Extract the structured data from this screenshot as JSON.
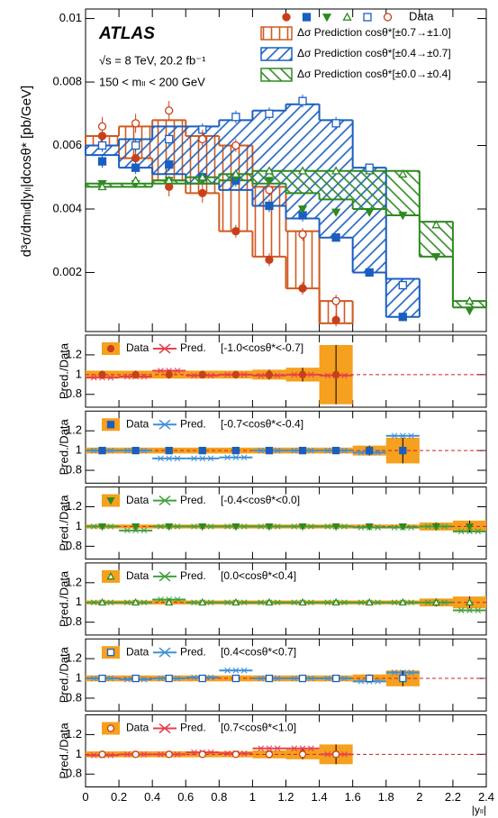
{
  "chart_data": {
    "type": "step",
    "experiment": "ATLAS",
    "energy_label": "√s = 8 TeV, 20.2 fb⁻¹",
    "mass_label": "150 < mₗₗ < 200 GeV",
    "ylabel": "d³σ/dmₗₗd|yₗₗ|dcosθ* [pb/GeV]",
    "xlabel": "|yₗₗ|",
    "xlim": [
      0,
      2.4
    ],
    "xticks": [
      0,
      0.2,
      0.4,
      0.6,
      0.8,
      1,
      1.2,
      1.4,
      1.6,
      1.8,
      2,
      2.2,
      2.4
    ],
    "ylim": [
      0.00014,
      0.0103
    ],
    "yticks": [
      0.002,
      0.004,
      0.006,
      0.008,
      0.01
    ],
    "bins": [
      0,
      0.2,
      0.4,
      0.6,
      0.8,
      1,
      1.2,
      1.4,
      1.6,
      1.8,
      2,
      2.2,
      2.4
    ],
    "x": [
      0.1,
      0.3,
      0.5,
      0.7,
      0.9,
      1.1,
      1.3,
      1.5,
      1.7,
      1.9,
      2.1,
      2.3
    ],
    "data_label": "Data",
    "data_series": [
      {
        "marker": "circle",
        "color": "#c8401a",
        "values": [
          0.0063,
          0.0056,
          0.0047,
          0.0045,
          0.0033,
          0.0024,
          0.0015,
          0.0005
        ],
        "errors": [
          0.0003,
          0.0003,
          0.0003,
          0.0003,
          0.0002,
          0.0002,
          0.0002,
          0.0002
        ]
      },
      {
        "marker": "square",
        "color": "#1a5fc0",
        "values": [
          0.0055,
          0.0053,
          0.0054,
          0.005,
          0.0049,
          0.0041,
          0.0038,
          0.0031,
          0.002,
          0.0006
        ],
        "errors": [
          0.0002,
          0.0002,
          0.0002,
          0.0002,
          0.0002,
          0.0002,
          0.0002,
          0.0001,
          0.0001,
          0.0001
        ]
      },
      {
        "marker": "triangle-down",
        "color": "#2e8a20",
        "values": [
          0.0048,
          0.0048,
          0.0049,
          0.0049,
          0.005,
          0.0049,
          0.004,
          0.0039,
          0.0039,
          0.0038,
          0.0025,
          0.0008
        ],
        "errors": [
          0.0001,
          0.0001,
          0.0001,
          0.0001,
          0.0001,
          0.0001,
          0.0001,
          0.0001,
          0.0001,
          0.0001,
          0.0001,
          0.0001
        ]
      },
      {
        "marker": "triangle-up-open",
        "color": "#2e8a20",
        "values": [
          0.0047,
          0.0049,
          0.0049,
          0.005,
          0.0051,
          0.0052,
          0.0052,
          0.0052,
          0.0052,
          0.0051,
          0.0035,
          0.0011
        ],
        "errors": [
          0.0001,
          0.0001,
          0.0001,
          0.0001,
          0.0001,
          0.0001,
          0.0001,
          0.0001,
          0.0001,
          0.0001,
          0.0001,
          0.0001
        ]
      },
      {
        "marker": "square-open",
        "color": "#1a5fc0",
        "values": [
          0.006,
          0.006,
          0.0062,
          0.0065,
          0.0069,
          0.007,
          0.0074,
          0.0067,
          0.0053,
          0.0016
        ],
        "errors": [
          0.0002,
          0.0002,
          0.0002,
          0.0002,
          0.0002,
          0.0002,
          0.0002,
          0.0002,
          0.0001,
          0.0001
        ]
      },
      {
        "marker": "circle-open",
        "color": "#c8401a",
        "values": [
          0.0066,
          0.0067,
          0.0071,
          0.0062,
          0.006,
          0.0046,
          0.0032,
          0.0011
        ],
        "errors": [
          0.0003,
          0.0003,
          0.0003,
          0.0003,
          0.0002,
          0.0002,
          0.0002,
          0.0002
        ]
      }
    ],
    "bands": [
      {
        "name": "Δσ Prediction cosθ*[±0.7→±1.0]",
        "color": "#d05a20",
        "hatch": "vertical",
        "high": [
          0.0063,
          0.0066,
          0.0068,
          0.0063,
          0.006,
          0.0047,
          0.0033,
          0.0011
        ],
        "low": [
          0.006,
          0.0056,
          0.0049,
          0.0045,
          0.0033,
          0.0025,
          0.0015,
          0.0004
        ]
      },
      {
        "name": "Δσ Prediction cosθ*[±0.4→±0.7]",
        "color": "#1a5fc0",
        "hatch": "forward",
        "high": [
          0.006,
          0.0062,
          0.0066,
          0.0066,
          0.0068,
          0.0071,
          0.0073,
          0.0068,
          0.0053,
          0.0018
        ],
        "low": [
          0.0057,
          0.0053,
          0.0051,
          0.0048,
          0.0046,
          0.0041,
          0.0037,
          0.0031,
          0.002,
          0.0006
        ]
      },
      {
        "name": "Δσ Prediction cosθ*[±0.0→±0.4]",
        "color": "#2e8a20",
        "hatch": "backward",
        "high": [
          0.0048,
          0.0048,
          0.0049,
          0.005,
          0.0051,
          0.0052,
          0.0052,
          0.0052,
          0.0052,
          0.0052,
          0.0036,
          0.0011
        ],
        "low": [
          0.0047,
          0.0047,
          0.0048,
          0.0048,
          0.0049,
          0.0048,
          0.0045,
          0.0043,
          0.004,
          0.0038,
          0.0025,
          0.0009
        ]
      }
    ],
    "ratio_ylabel": "Pred./Data",
    "ratio_ylim": [
      0.67,
      1.4
    ],
    "ratio_yticks": [
      0.8,
      1,
      1.2
    ],
    "ratio_reference": 1,
    "ratio_box_color": "#f5a01e",
    "ratio_panels": [
      {
        "data_label": "Data",
        "pred_label": "Pred.",
        "label": "[-1.0<cosθ*<-0.7]",
        "marker": "circle",
        "color": "#c8401a",
        "pred_color": "#e84050",
        "values": [
          1,
          1,
          1,
          1,
          1,
          1,
          1,
          1
        ],
        "errors": [
          0.04,
          0.04,
          0.04,
          0.04,
          0.04,
          0.05,
          0.07,
          0.3
        ],
        "pred_values": [
          0.97,
          0.98,
          1.04,
          0.99,
          1,
          0.99,
          1,
          0.99
        ]
      },
      {
        "data_label": "Data",
        "pred_label": "Pred.",
        "label": "[-0.7<cosθ*<-0.4]",
        "marker": "square",
        "color": "#1a5fc0",
        "pred_color": "#3f8fd8",
        "values": [
          1,
          1,
          1,
          1,
          1,
          1,
          1,
          1,
          1,
          1
        ],
        "errors": [
          0.03,
          0.03,
          0.03,
          0.03,
          0.03,
          0.03,
          0.03,
          0.03,
          0.05,
          0.13
        ],
        "pred_values": [
          1,
          1,
          0.92,
          0.92,
          0.93,
          1,
          1,
          1,
          0.98,
          1.15
        ]
      },
      {
        "data_label": "Data",
        "pred_label": "Pred.",
        "label": "[-0.4<cosθ*<0.0]",
        "marker": "triangle-down",
        "color": "#2e8a20",
        "pred_color": "#40a040",
        "values": [
          1,
          1,
          1,
          1,
          1,
          1,
          1,
          1,
          1,
          1,
          1,
          1
        ],
        "errors": [
          0.02,
          0.02,
          0.02,
          0.02,
          0.02,
          0.02,
          0.02,
          0.02,
          0.02,
          0.02,
          0.04,
          0.06
        ],
        "pred_values": [
          1,
          0.96,
          1,
          1,
          1,
          1,
          1,
          1,
          0.99,
          0.99,
          1,
          0.95
        ]
      },
      {
        "data_label": "Data",
        "pred_label": "Pred.",
        "label": "[0.0<cosθ*<0.4]",
        "marker": "triangle-up-open",
        "color": "#2e8a20",
        "pred_color": "#40a040",
        "values": [
          1,
          1,
          1,
          1,
          1,
          1,
          1,
          1,
          1,
          1,
          1,
          1
        ],
        "errors": [
          0.02,
          0.02,
          0.02,
          0.02,
          0.02,
          0.02,
          0.02,
          0.02,
          0.02,
          0.02,
          0.04,
          0.06
        ],
        "pred_values": [
          1,
          1,
          1.03,
          1,
          1,
          1,
          1,
          1,
          1,
          1,
          1,
          0.92
        ]
      },
      {
        "data_label": "Data",
        "pred_label": "Pred.",
        "label": "[0.4<cosθ*<0.7]",
        "marker": "square-open",
        "color": "#1a5fc0",
        "pred_color": "#3f8fd8",
        "values": [
          1,
          1,
          1,
          1,
          1,
          1,
          1,
          1,
          1,
          1
        ],
        "errors": [
          0.03,
          0.03,
          0.03,
          0.03,
          0.03,
          0.03,
          0.03,
          0.03,
          0.04,
          0.08
        ],
        "pred_values": [
          1,
          0.99,
          1,
          1.01,
          1.08,
          1,
          1,
          1,
          0.97,
          1.06
        ]
      },
      {
        "data_label": "Data",
        "pred_label": "Pred.",
        "label": "[0.7<cosθ*<1.0]",
        "marker": "circle-open",
        "color": "#c8401a",
        "pred_color": "#e84050",
        "values": [
          1,
          1,
          1,
          1,
          1,
          1,
          1,
          1
        ],
        "errors": [
          0.03,
          0.03,
          0.03,
          0.03,
          0.03,
          0.04,
          0.05,
          0.1
        ],
        "pred_values": [
          0.99,
          1,
          1,
          1.02,
          1.01,
          1.06,
          1.06,
          1
        ]
      }
    ]
  }
}
